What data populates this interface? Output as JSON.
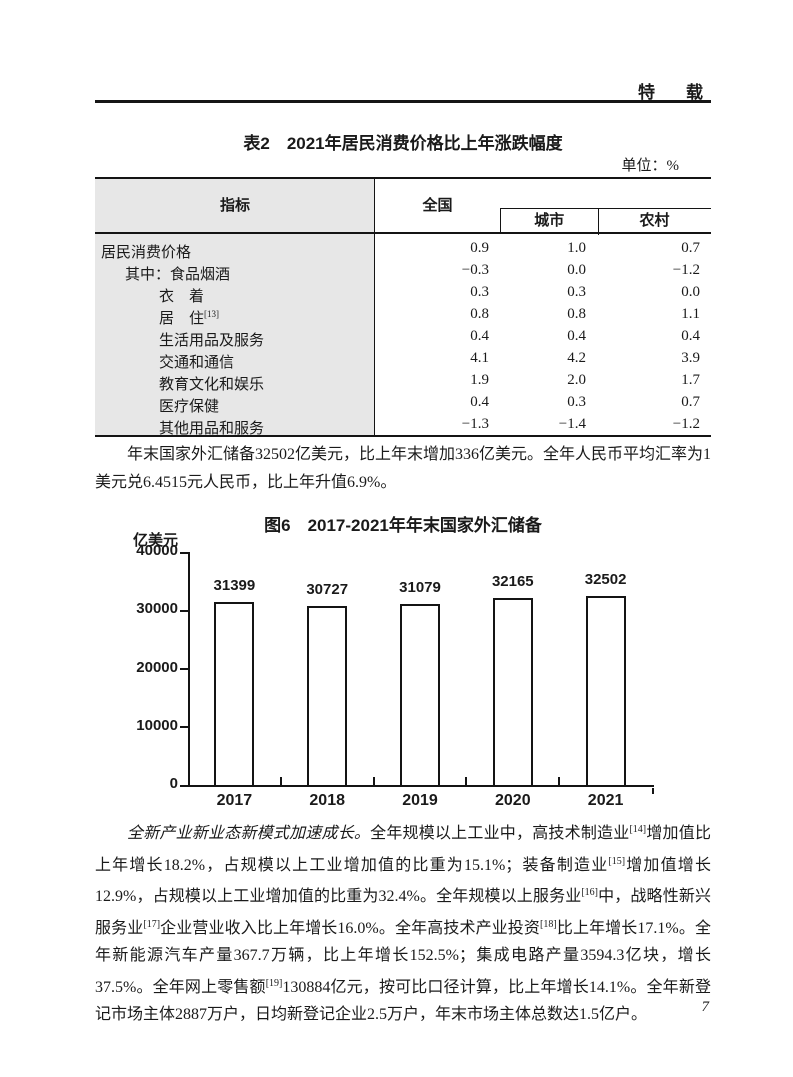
{
  "page": {
    "header_label": "特　载",
    "page_number": "7"
  },
  "table2": {
    "title": "表2　2021年居民消费价格比上年涨跌幅度",
    "unit": "单位：%",
    "columns": {
      "indicator": "指标",
      "national": "全国",
      "urban": "城市",
      "rural": "农村"
    },
    "rows": [
      {
        "label": "居民消费价格",
        "national": "0.9",
        "urban": "1.0",
        "rural": "0.7"
      },
      {
        "label": "其中：食品烟酒",
        "national": "−0.3",
        "urban": "0.0",
        "rural": "−1.2"
      },
      {
        "label": "衣　着",
        "national": "0.3",
        "urban": "0.3",
        "rural": "0.0"
      },
      {
        "label": "居　住",
        "sup": "[13]",
        "national": "0.8",
        "urban": "0.8",
        "rural": "1.1"
      },
      {
        "label": "生活用品及服务",
        "national": "0.4",
        "urban": "0.4",
        "rural": "0.4"
      },
      {
        "label": "交通和通信",
        "national": "4.1",
        "urban": "4.2",
        "rural": "3.9"
      },
      {
        "label": "教育文化和娱乐",
        "national": "1.9",
        "urban": "2.0",
        "rural": "1.7"
      },
      {
        "label": "医疗保健",
        "national": "0.4",
        "urban": "0.3",
        "rural": "0.7"
      },
      {
        "label": "其他用品和服务",
        "national": "−1.3",
        "urban": "−1.4",
        "rural": "−1.2"
      }
    ]
  },
  "para1": "年末国家外汇储备32502亿美元，比上年末增加336亿美元。全年人民币平均汇率为1美元兑6.4515元人民币，比上年升值6.9%。",
  "chart_data": {
    "type": "bar",
    "title": "图6　2017-2021年年末国家外汇储备",
    "unit_label": "亿美元",
    "categories": [
      "2017",
      "2018",
      "2019",
      "2020",
      "2021"
    ],
    "values": [
      31399,
      30727,
      31079,
      32165,
      32502
    ],
    "ylim": [
      0,
      40000
    ],
    "yticks": [
      0,
      10000,
      20000,
      30000,
      40000
    ],
    "grid": false,
    "legend": "none",
    "bar_fill": "#ffffff",
    "bar_border": "#141414"
  },
  "para2": {
    "s0": "全新产业新业态新模式加速成长。",
    "s1": "全年规模以上工业中，高技术制造业",
    "sup14": "[14]",
    "s2": "增加值比上年增长18.2%，占规模以上工业增加值的比重为15.1%；装备制造业",
    "sup15": "[15]",
    "s3": "增加值增长12.9%，占规模以上工业增加值的比重为32.4%。全年规模以上服务业",
    "sup16": "[16]",
    "s4": "中，战略性新兴服务业",
    "sup17": "[17]",
    "s5": "企业营业收入比上年增长16.0%。全年高技术产业投资",
    "sup18": "[18]",
    "s6": "比上年增长17.1%。全年新能源汽车产量367.7万辆，比上年增长152.5%；集成电路产量3594.3亿块，增长37.5%。全年网上零售额",
    "sup19": "[19]",
    "s7": "130884亿元，按可比口径计算，比上年增长14.1%。全年新登记市场主体2887万户，日均新登记企业2.5万户，年末市场主体总数达1.5亿户。"
  }
}
